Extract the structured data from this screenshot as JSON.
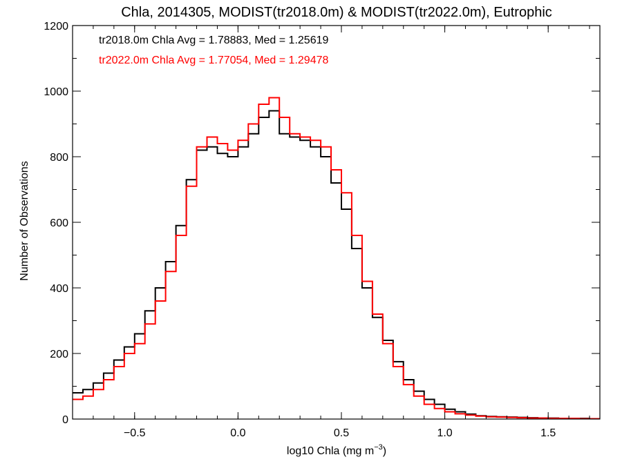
{
  "chart_data": {
    "type": "line",
    "title": "Chla, 2014305, MODIST(tr2018.0m) & MODIST(tr2022.0m), Eutrophic",
    "xlabel_main": "log10 Chla (mg m",
    "xlabel_sup": "−3",
    "xlabel_end": ")",
    "ylabel": "Number of Observations",
    "xlim": [
      -0.8,
      1.75
    ],
    "ylim": [
      0,
      1200
    ],
    "x_ticks": [
      -0.5,
      0.0,
      0.5,
      1.0,
      1.5
    ],
    "x_tick_labels": [
      "−0.5",
      "0.0",
      "0.5",
      "1.0",
      "1.5"
    ],
    "y_ticks": [
      0,
      200,
      400,
      600,
      800,
      1000,
      1200
    ],
    "y_tick_labels": [
      "0",
      "200",
      "400",
      "600",
      "800",
      "1000",
      "1200"
    ],
    "grid": false,
    "legend_position": "top-left",
    "step_style": "histogram-steps",
    "series": [
      {
        "name": "tr2018.0m Chla Avg = 1.78883, Med = 1.25619",
        "color": "#000000",
        "x": [
          -0.8,
          -0.75,
          -0.7,
          -0.65,
          -0.6,
          -0.55,
          -0.5,
          -0.45,
          -0.4,
          -0.35,
          -0.3,
          -0.25,
          -0.2,
          -0.15,
          -0.1,
          -0.05,
          0.0,
          0.05,
          0.1,
          0.15,
          0.2,
          0.25,
          0.3,
          0.35,
          0.4,
          0.45,
          0.5,
          0.55,
          0.6,
          0.65,
          0.7,
          0.75,
          0.8,
          0.85,
          0.9,
          0.95,
          1.0,
          1.05,
          1.1,
          1.15,
          1.2,
          1.25,
          1.3,
          1.35,
          1.4,
          1.45,
          1.5,
          1.55,
          1.6,
          1.65,
          1.7,
          1.75
        ],
        "y": [
          80,
          90,
          110,
          140,
          180,
          220,
          260,
          330,
          400,
          480,
          590,
          730,
          820,
          830,
          810,
          800,
          830,
          870,
          920,
          940,
          870,
          860,
          850,
          830,
          800,
          720,
          640,
          520,
          400,
          310,
          240,
          175,
          120,
          85,
          60,
          45,
          30,
          22,
          15,
          10,
          8,
          7,
          6,
          5,
          4,
          3,
          3,
          2,
          2,
          2,
          1,
          1
        ]
      },
      {
        "name": "tr2022.0m Chla Avg = 1.77054, Med = 1.29478",
        "color": "#ff0000",
        "x": [
          -0.8,
          -0.75,
          -0.7,
          -0.65,
          -0.6,
          -0.55,
          -0.5,
          -0.45,
          -0.4,
          -0.35,
          -0.3,
          -0.25,
          -0.2,
          -0.15,
          -0.1,
          -0.05,
          0.0,
          0.05,
          0.1,
          0.15,
          0.2,
          0.25,
          0.3,
          0.35,
          0.4,
          0.45,
          0.5,
          0.55,
          0.6,
          0.65,
          0.7,
          0.75,
          0.8,
          0.85,
          0.9,
          0.95,
          1.0,
          1.05,
          1.1,
          1.15,
          1.2,
          1.25,
          1.3,
          1.35,
          1.4,
          1.45,
          1.5,
          1.55,
          1.6,
          1.65,
          1.7,
          1.75
        ],
        "y": [
          60,
          70,
          90,
          120,
          160,
          200,
          230,
          290,
          360,
          450,
          560,
          710,
          830,
          860,
          840,
          820,
          850,
          900,
          960,
          980,
          920,
          870,
          860,
          850,
          830,
          760,
          690,
          560,
          420,
          320,
          230,
          160,
          105,
          70,
          45,
          32,
          22,
          16,
          12,
          9,
          7,
          6,
          5,
          4,
          3,
          3,
          2,
          2,
          2,
          1,
          1,
          1
        ]
      }
    ]
  }
}
